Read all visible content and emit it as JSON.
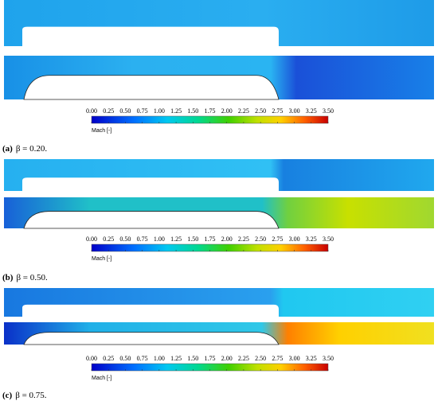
{
  "panels": [
    {
      "label": "(a)",
      "caption": "β = 0.20.",
      "colorbar": {
        "label": "Mach [-]",
        "lim": [
          0,
          3.5
        ],
        "ticks": [
          {
            "value": 0,
            "label": "0.00"
          },
          {
            "value": 0.25,
            "label": "0.25"
          },
          {
            "value": 0.5,
            "label": "0.50"
          },
          {
            "value": 0.75,
            "label": "0.75"
          },
          {
            "value": 1,
            "label": "1.00"
          },
          1.25,
          {
            "value": 1.5,
            "label": "1.50"
          },
          1.75,
          {
            "value": 2,
            "label": "2.00"
          },
          2.25,
          {
            "value": 2.5,
            "label": "2.50"
          },
          2.75,
          {
            "value": 3,
            "label": "3.00"
          },
          3.25,
          {
            "value": 3.5,
            "label": "3.50"
          }
        ]
      }
    },
    {
      "label": "(b)",
      "caption": "β = 0.50.",
      "colorbar": {
        "label": "Mach [-]",
        "lim": [
          0,
          3.5
        ],
        "ticks": [
          {
            "value": 0,
            "label": "0.00"
          },
          {
            "value": 0.25,
            "label": "0.25"
          },
          {
            "value": 0.5,
            "label": "0.50"
          },
          {
            "value": 0.75,
            "label": "0.75"
          },
          {
            "value": 1,
            "label": "1.00"
          },
          1.25,
          {
            "value": 1.5,
            "label": "1.50"
          },
          1.75,
          {
            "value": 2,
            "label": "2.00"
          },
          2.25,
          {
            "value": 2.5,
            "label": "2.50"
          },
          2.75,
          {
            "value": 3,
            "label": "3.00"
          },
          3.25,
          {
            "value": 3.5,
            "label": "3.50"
          }
        ]
      }
    },
    {
      "label": "(c)",
      "caption": "β = 0.75.",
      "colorbar": {
        "label": "Mach [-]",
        "lim": [
          0,
          3.5
        ],
        "ticks": [
          {
            "value": 0,
            "label": "0.00"
          },
          {
            "value": 0.25,
            "label": "0.25"
          },
          {
            "value": 0.5,
            "label": "0.50"
          },
          {
            "value": 0.75,
            "label": "0.75"
          },
          {
            "value": 1,
            "label": "1.00"
          },
          1.25,
          {
            "value": 1.5,
            "label": "1.50"
          },
          1.75,
          {
            "value": 2,
            "label": "2.00"
          },
          2.25,
          {
            "value": 2.5,
            "label": "2.50"
          },
          2.75,
          {
            "value": 3,
            "label": "3.00"
          },
          3.25,
          {
            "value": 3.5,
            "label": "3.50"
          }
        ]
      }
    }
  ]
}
